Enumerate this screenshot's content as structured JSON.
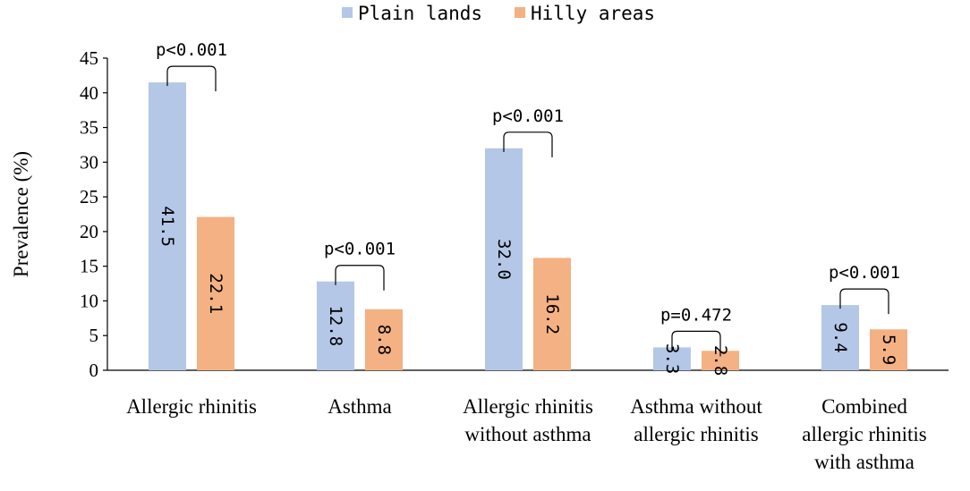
{
  "chart_data": {
    "type": "bar",
    "categories": [
      [
        "Allergic rhinitis"
      ],
      [
        "Asthma"
      ],
      [
        "Allergic rhinitis",
        "without asthma"
      ],
      [
        "Asthma without",
        "allergic rhinitis"
      ],
      [
        "Combined",
        "allergic rhinitis",
        "with asthma"
      ]
    ],
    "series": [
      {
        "name": "Plain lands",
        "color": "#b4c7e7",
        "values": [
          41.5,
          12.8,
          32.0,
          3.3,
          9.4
        ],
        "labels": [
          "41.5",
          "12.8",
          "32.0",
          "3.3",
          "9.4"
        ]
      },
      {
        "name": "Hilly areas",
        "color": "#f4b183",
        "values": [
          22.1,
          8.8,
          16.2,
          2.8,
          5.9
        ],
        "labels": [
          "22.1",
          "8.8",
          "16.2",
          "2.8",
          "5.9"
        ]
      }
    ],
    "annotations": [
      "p<0.001",
      "p<0.001",
      "p<0.001",
      "p=0.472",
      "p<0.001"
    ],
    "ylabel": "Prevalence (%)",
    "xlabel": "",
    "ylim": [
      0,
      45
    ],
    "yticks": [
      0,
      5,
      10,
      15,
      20,
      25,
      30,
      35,
      40,
      45
    ],
    "grid": false,
    "legend_position": "top-center"
  }
}
